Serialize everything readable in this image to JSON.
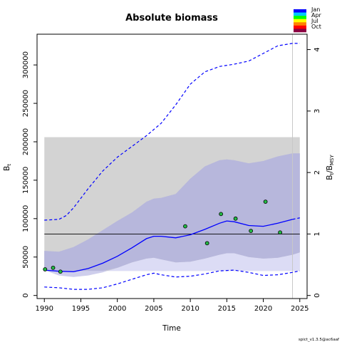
{
  "chart_data": {
    "type": "line",
    "title": "Absolute biomass",
    "xlabel": "Time",
    "ylabel_left": "B",
    "ylabel_left_sub": "t",
    "ylabel_right": "B",
    "ylabel_right_sub": "t",
    "ylabel_right_denom": "/B",
    "ylabel_right_denom_sub": "MSY",
    "xlim": [
      1989,
      2026
    ],
    "ylim": [
      -4000,
      340000
    ],
    "ylim_right_max": 4,
    "x_ticks": [
      1990,
      1995,
      2000,
      2005,
      2010,
      2015,
      2020,
      2025
    ],
    "y_ticks": [
      0,
      50000,
      100000,
      150000,
      200000,
      250000,
      300000
    ],
    "y_ticks_right": [
      0,
      1,
      2,
      3,
      4
    ],
    "bmsy": 80000,
    "bmsy_ci_band": [
      32000,
      206000
    ],
    "bmsy_band_x": [
      1990,
      2025
    ],
    "forecast_start": 2024,
    "estimate": {
      "x": [
        1990,
        1992,
        1994,
        1996,
        1998,
        2000,
        2002,
        2004,
        2005,
        2006,
        2008,
        2010,
        2012,
        2014,
        2015,
        2016,
        2018,
        2020,
        2022,
        2024
      ],
      "y": [
        33000,
        31500,
        31000,
        35000,
        42000,
        51000,
        62000,
        74000,
        77000,
        77000,
        75000,
        79000,
        86000,
        94000,
        97000,
        96000,
        91000,
        90000,
        94000,
        99000
      ]
    },
    "estimate_forecast": {
      "x": [
        2024,
        2025
      ],
      "y": [
        99000,
        101000
      ]
    },
    "ci_band": {
      "x": [
        1990,
        1992,
        1994,
        1996,
        1998,
        2000,
        2002,
        2004,
        2005,
        2006,
        2008,
        2010,
        2012,
        2014,
        2015,
        2016,
        2018,
        2020,
        2022,
        2024,
        2025
      ],
      "lower": [
        33000,
        26000,
        24000,
        26000,
        30000,
        36000,
        43000,
        48000,
        49000,
        47000,
        43000,
        44000,
        48000,
        53000,
        55000,
        55000,
        50000,
        48000,
        49000,
        53000,
        56000
      ],
      "upper": [
        58000,
        57000,
        63000,
        73000,
        85000,
        97000,
        108000,
        122000,
        126000,
        127000,
        132000,
        152000,
        168000,
        176000,
        177000,
        176000,
        172000,
        175000,
        181000,
        185000,
        185000
      ]
    },
    "upper_95": {
      "x": [
        1990,
        1992,
        1993,
        1994,
        1996,
        1998,
        2000,
        2002,
        2004,
        2006,
        2008,
        2010,
        2012,
        2014,
        2016,
        2018,
        2020,
        2022,
        2024,
        2025
      ],
      "y": [
        98000,
        99000,
        104000,
        114000,
        139000,
        162000,
        180000,
        194000,
        208000,
        224000,
        248000,
        275000,
        291000,
        298000,
        301000,
        305000,
        315000,
        325000,
        328000,
        328000
      ]
    },
    "lower_95": {
      "x": [
        1990,
        1992,
        1994,
        1996,
        1998,
        2000,
        2002,
        2004,
        2005,
        2006,
        2008,
        2010,
        2012,
        2014,
        2016,
        2018,
        2020,
        2022,
        2024,
        2025
      ],
      "y": [
        11000,
        10000,
        8000,
        8000,
        10000,
        15000,
        21000,
        27000,
        29000,
        27000,
        24000,
        25000,
        28000,
        32000,
        33000,
        30000,
        26000,
        27000,
        30000,
        32000
      ]
    },
    "points": {
      "x": [
        1990.1,
        1991.2,
        1992.2,
        2009.3,
        2012.3,
        2014.2,
        2016.2,
        2018.3,
        2020.3,
        2022.3
      ],
      "y": [
        34000,
        36000,
        31000,
        90000,
        68000,
        106000,
        100000,
        84000,
        122000,
        82000
      ]
    },
    "legend": {
      "labels": [
        "Jan",
        "Apr",
        "Jul",
        "Oct"
      ],
      "colors": [
        "#0000ff",
        "#00c8ff",
        "#00ff00",
        "#ffff00",
        "#ff8000",
        "#ff0000",
        "#8b0040"
      ]
    },
    "colors": {
      "estimate": "#0000ff",
      "ci_fill": "#b5b5dd",
      "ci_fill_light": "#dcdcf5",
      "band_fill": "#d3d3d3",
      "point_fill": "#22bb44",
      "forecast_line": "#c8c8c8"
    },
    "footer": "spict_v1.3.5@ac6aaf"
  }
}
